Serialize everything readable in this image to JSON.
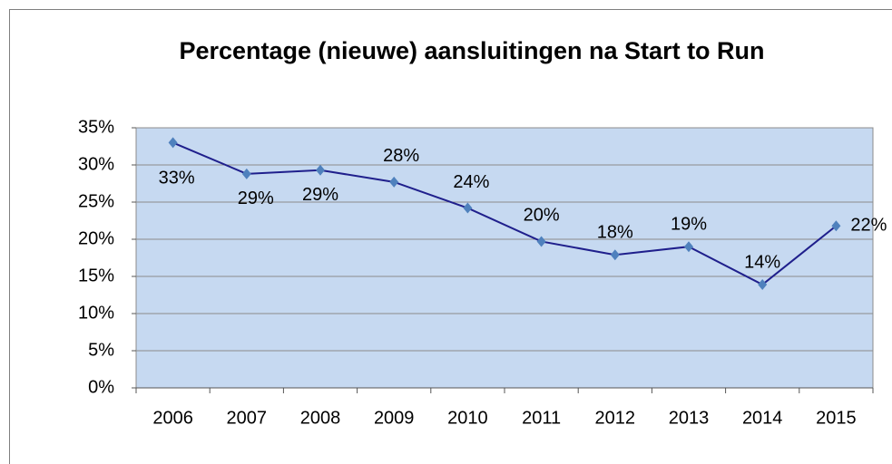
{
  "chart_data": {
    "type": "line",
    "title": "Percentage (nieuwe) aansluitingen na Start to Run",
    "categories": [
      "2006",
      "2007",
      "2008",
      "2009",
      "2010",
      "2011",
      "2012",
      "2013",
      "2014",
      "2015"
    ],
    "series": [
      {
        "name": "Percentage",
        "color": "#1f1f8c",
        "marker_color": "#4f81bd",
        "values": [
          33,
          28.8,
          29.3,
          27.7,
          24.2,
          19.7,
          17.9,
          19,
          13.9,
          21.8
        ],
        "value_labels": [
          "33%",
          "29%",
          "29%",
          "28%",
          "24%",
          "20%",
          "18%",
          "19%",
          "14%",
          "22%"
        ]
      }
    ],
    "ylim": [
      0,
      35
    ],
    "yticks": [
      {
        "value": 0,
        "label": "0%"
      },
      {
        "value": 5,
        "label": "5%"
      },
      {
        "value": 10,
        "label": "10%"
      },
      {
        "value": 15,
        "label": "15%"
      },
      {
        "value": 20,
        "label": "20%"
      },
      {
        "value": 25,
        "label": "25%"
      },
      {
        "value": 30,
        "label": "30%"
      },
      {
        "value": 35,
        "label": "35%"
      }
    ],
    "grid": true
  }
}
